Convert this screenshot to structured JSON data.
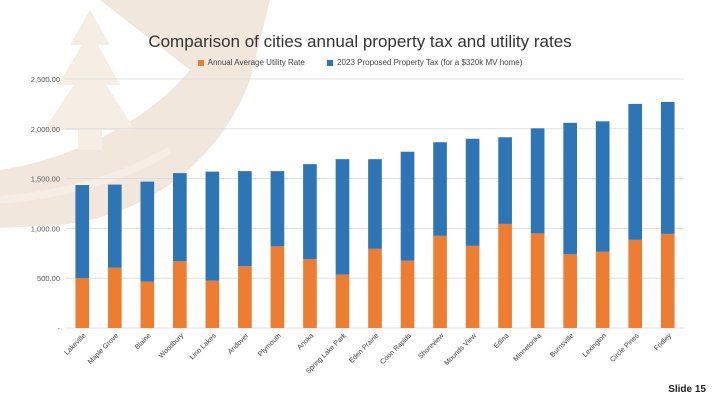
{
  "slide": {
    "number_label": "Slide 15"
  },
  "chart_data": {
    "type": "bar",
    "stacked": true,
    "title": "Comparison of cities annual property tax and utility rates",
    "categories": [
      "Lakeville",
      "Maple Grove",
      "Blaine",
      "Woodbury",
      "Lino Lakes",
      "Andover",
      "Plymouth",
      "Anoka",
      "Spring Lake Park",
      "Eden Prairie",
      "Coon Rapids",
      "Shoreview",
      "Mounds View",
      "Edina",
      "Minnetonka",
      "Burnsville",
      "Lexington",
      "Circle Pines",
      "Fridley"
    ],
    "series": [
      {
        "name": "Annual Average Utility Rate",
        "color": "#ED7D31",
        "values": [
          500,
          605,
          465,
          670,
          475,
          620,
          820,
          690,
          535,
          795,
          675,
          925,
          825,
          1045,
          950,
          740,
          765,
          885,
          945
        ]
      },
      {
        "name": "2023 Proposed Property Tax (for a $320k MV home)",
        "color": "#2E75B6",
        "values": [
          935,
          835,
          1005,
          885,
          1095,
          955,
          755,
          955,
          1160,
          900,
          1095,
          940,
          1075,
          870,
          1055,
          1320,
          1310,
          1365,
          1325
        ]
      }
    ],
    "ylim": [
      0,
      2500
    ],
    "yticks": [
      0,
      500,
      1000,
      1500,
      2000,
      2500
    ],
    "ytick_labels": [
      "-",
      "500.00",
      "1,000.00",
      "1,500.00",
      "2,000.00",
      "2,500.00"
    ],
    "grid": true,
    "legend_position": "top"
  }
}
